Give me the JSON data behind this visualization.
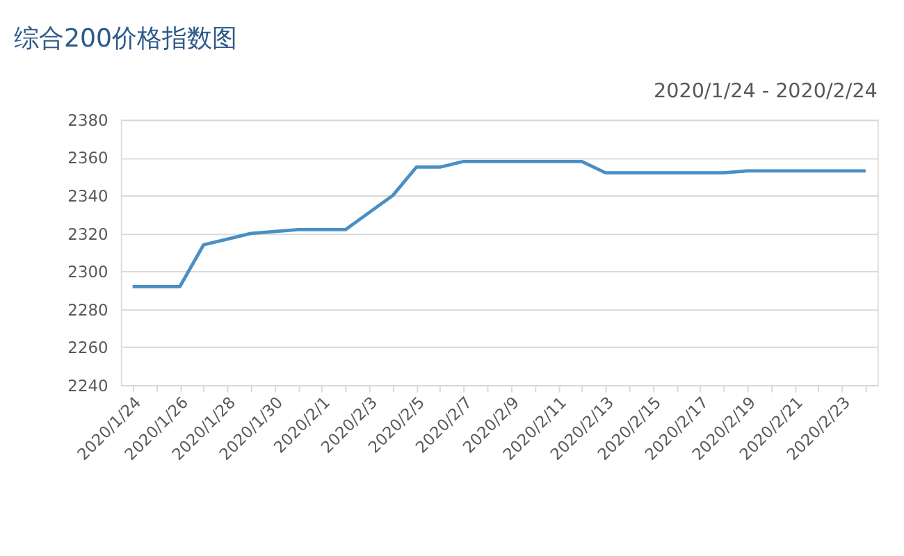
{
  "chart_data": {
    "type": "line",
    "title": "综合200价格指数图",
    "subtitle": "2020/1/24  -  2020/2/24",
    "categories": [
      "2020/1/24",
      null,
      "2020/1/26",
      null,
      "2020/1/28",
      null,
      "2020/1/30",
      null,
      "2020/2/1",
      null,
      "2020/2/3",
      null,
      "2020/2/5",
      null,
      "2020/2/7",
      null,
      "2020/2/9",
      null,
      "2020/2/11",
      null,
      "2020/2/13",
      null,
      "2020/2/15",
      null,
      "2020/2/17",
      null,
      "2020/2/19",
      null,
      "2020/2/21",
      null,
      "2020/2/23",
      null
    ],
    "series": [
      {
        "color": "#4a8fc4",
        "values": [
          2292,
          2292,
          2292,
          2314,
          2317,
          2320,
          2321,
          2322,
          2322,
          2322,
          2331,
          2340,
          2355,
          2355,
          2358,
          2358,
          2358,
          2358,
          2358,
          2358,
          2352,
          2352,
          2352,
          2352,
          2352,
          2352,
          2353,
          2353,
          2353,
          2353,
          2353,
          2353
        ]
      }
    ],
    "ylim": [
      2240,
      2380
    ],
    "yticks": [
      2240,
      2260,
      2280,
      2300,
      2320,
      2340,
      2360,
      2380
    ],
    "grid": "y",
    "marker": "none",
    "line_style": "solid"
  }
}
